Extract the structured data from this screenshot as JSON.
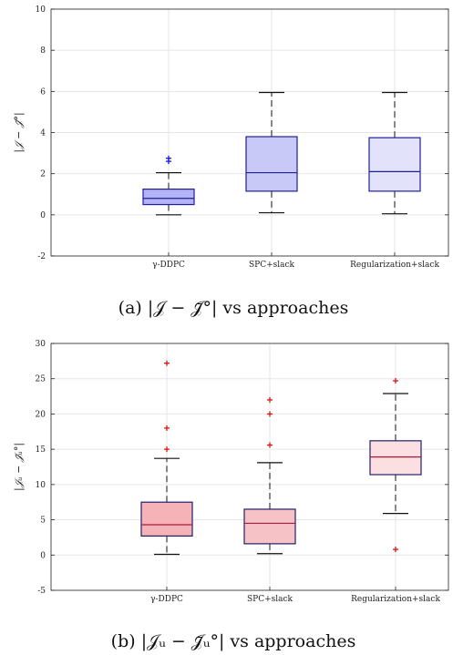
{
  "chart_data": [
    {
      "type": "box",
      "categories": [
        "γ-DDPC",
        "SPC+slack",
        "Regularization+slack"
      ],
      "ylim": [
        -2,
        10
      ],
      "yticks": [
        -2,
        0,
        2,
        4,
        6,
        8,
        10
      ],
      "ylabel": "|𝒥 − 𝒥̄°|",
      "caption": "(a) |𝒥 − 𝒥̄°| vs approaches",
      "grid": true,
      "colors": {
        "edge": "#1f1f9c",
        "median": "#1f1f9c",
        "whisker": "#111111",
        "outlier": "#1515e0",
        "fills": [
          "#b3b3f5",
          "#c9c9f7",
          "#e2e2fb"
        ]
      },
      "boxes": [
        {
          "min": 0.0,
          "q1": 0.5,
          "median": 0.8,
          "q3": 1.25,
          "max": 2.05,
          "outliers": [
            2.6,
            2.75
          ]
        },
        {
          "min": 0.1,
          "q1": 1.15,
          "median": 2.05,
          "q3": 3.8,
          "max": 5.95,
          "outliers": []
        },
        {
          "min": 0.05,
          "q1": 1.15,
          "median": 2.1,
          "q3": 3.75,
          "max": 5.95,
          "outliers": []
        }
      ]
    },
    {
      "type": "box",
      "categories": [
        "γ-DDPC",
        "SPC+slack",
        "Regularization+slack"
      ],
      "ylim": [
        -5,
        30
      ],
      "yticks": [
        -5,
        0,
        5,
        10,
        15,
        20,
        25,
        30
      ],
      "ylabel": "|𝒥ᵤ − 𝒥̄ᵤ°|",
      "caption": "(b) |𝒥ᵤ − 𝒥̄ᵤ°| vs approaches",
      "grid": true,
      "colors": {
        "edge": "#1f1f6f",
        "median": "#b01a3a",
        "whisker": "#111111",
        "outlier": "#e01010",
        "fills": [
          "#f5b3b8",
          "#f7c2c6",
          "#fbdfe1"
        ]
      },
      "boxes": [
        {
          "min": 0.1,
          "q1": 2.7,
          "median": 4.3,
          "q3": 7.5,
          "max": 13.7,
          "outliers": [
            15.0,
            18.0,
            27.2
          ]
        },
        {
          "min": 0.2,
          "q1": 1.6,
          "median": 4.5,
          "q3": 6.5,
          "max": 13.1,
          "outliers": [
            15.6,
            20.0,
            22.0
          ]
        },
        {
          "min": 5.9,
          "q1": 11.4,
          "median": 13.9,
          "q3": 16.2,
          "max": 22.9,
          "outliers": [
            0.8,
            24.7
          ]
        }
      ]
    }
  ]
}
